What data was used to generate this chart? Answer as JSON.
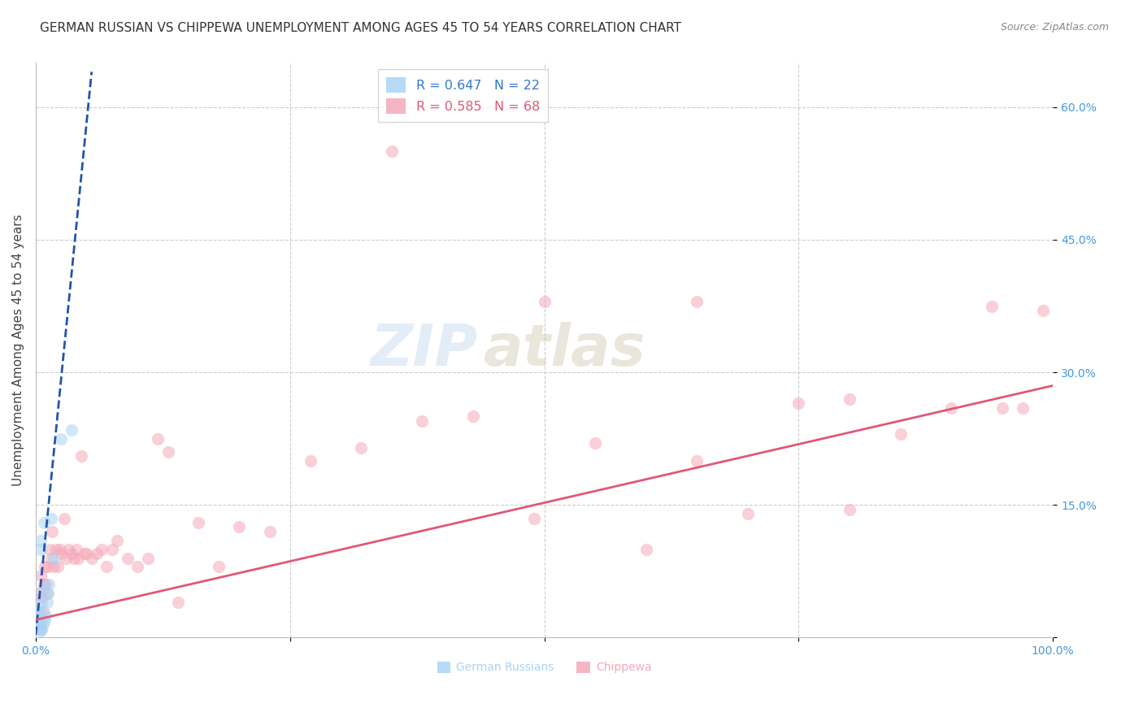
{
  "title": "GERMAN RUSSIAN VS CHIPPEWA UNEMPLOYMENT AMONG AGES 45 TO 54 YEARS CORRELATION CHART",
  "source": "Source: ZipAtlas.com",
  "ylabel": "Unemployment Among Ages 45 to 54 years",
  "xlim": [
    0,
    1.0
  ],
  "ylim": [
    0,
    0.65
  ],
  "blue_scatter_x": [
    0.002,
    0.003,
    0.003,
    0.004,
    0.004,
    0.005,
    0.005,
    0.005,
    0.006,
    0.006,
    0.007,
    0.007,
    0.008,
    0.009,
    0.01,
    0.011,
    0.012,
    0.013,
    0.015,
    0.018,
    0.025,
    0.035
  ],
  "blue_scatter_y": [
    0.025,
    0.01,
    0.02,
    0.015,
    0.03,
    0.008,
    0.1,
    0.11,
    0.01,
    0.04,
    0.015,
    0.055,
    0.13,
    0.02,
    0.025,
    0.04,
    0.05,
    0.06,
    0.135,
    0.09,
    0.225,
    0.235
  ],
  "pink_scatter_x": [
    0.002,
    0.003,
    0.004,
    0.004,
    0.005,
    0.005,
    0.006,
    0.007,
    0.008,
    0.009,
    0.01,
    0.011,
    0.012,
    0.014,
    0.015,
    0.016,
    0.018,
    0.02,
    0.022,
    0.024,
    0.025,
    0.028,
    0.03,
    0.032,
    0.035,
    0.038,
    0.04,
    0.042,
    0.045,
    0.048,
    0.05,
    0.055,
    0.06,
    0.065,
    0.07,
    0.075,
    0.08,
    0.09,
    0.1,
    0.11,
    0.12,
    0.13,
    0.14,
    0.16,
    0.18,
    0.2,
    0.23,
    0.27,
    0.32,
    0.38,
    0.43,
    0.49,
    0.55,
    0.6,
    0.65,
    0.7,
    0.75,
    0.8,
    0.85,
    0.9,
    0.94,
    0.97,
    0.99,
    0.35,
    0.5,
    0.65,
    0.8,
    0.95
  ],
  "pink_scatter_y": [
    0.03,
    0.015,
    0.02,
    0.05,
    0.01,
    0.07,
    0.045,
    0.03,
    0.06,
    0.08,
    0.06,
    0.05,
    0.08,
    0.1,
    0.09,
    0.12,
    0.08,
    0.1,
    0.08,
    0.1,
    0.095,
    0.135,
    0.09,
    0.1,
    0.095,
    0.09,
    0.1,
    0.09,
    0.205,
    0.095,
    0.095,
    0.09,
    0.095,
    0.1,
    0.08,
    0.1,
    0.11,
    0.09,
    0.08,
    0.09,
    0.225,
    0.21,
    0.04,
    0.13,
    0.08,
    0.125,
    0.12,
    0.2,
    0.215,
    0.245,
    0.25,
    0.135,
    0.22,
    0.1,
    0.2,
    0.14,
    0.265,
    0.145,
    0.23,
    0.26,
    0.375,
    0.26,
    0.37,
    0.55,
    0.38,
    0.38,
    0.27,
    0.26
  ],
  "blue_line_x": [
    0.0,
    0.055
  ],
  "blue_line_y": [
    0.003,
    0.64
  ],
  "pink_line_x": [
    0.0,
    1.0
  ],
  "pink_line_y": [
    0.02,
    0.285
  ],
  "watermark_part1": "ZIP",
  "watermark_part2": "atlas",
  "scatter_size": 120,
  "scatter_alpha": 0.55,
  "blue_color": "#a8d4f5",
  "pink_color": "#f5a8b8",
  "blue_line_color": "#2255aa",
  "pink_line_color": "#e05878",
  "grid_color": "#cccccc",
  "title_fontsize": 11,
  "axis_label_fontsize": 11,
  "tick_fontsize": 10,
  "source_fontsize": 9,
  "legend_fontsize": 11.5,
  "watermark_fontsize_zip": 52,
  "watermark_fontsize_atlas": 52,
  "watermark_color_zip": "#c0d8ee",
  "watermark_color_atlas": "#d0c8b0",
  "watermark_alpha": 0.45,
  "right_tick_color": "#4499dd",
  "bottom_tick_color": "#4499dd"
}
